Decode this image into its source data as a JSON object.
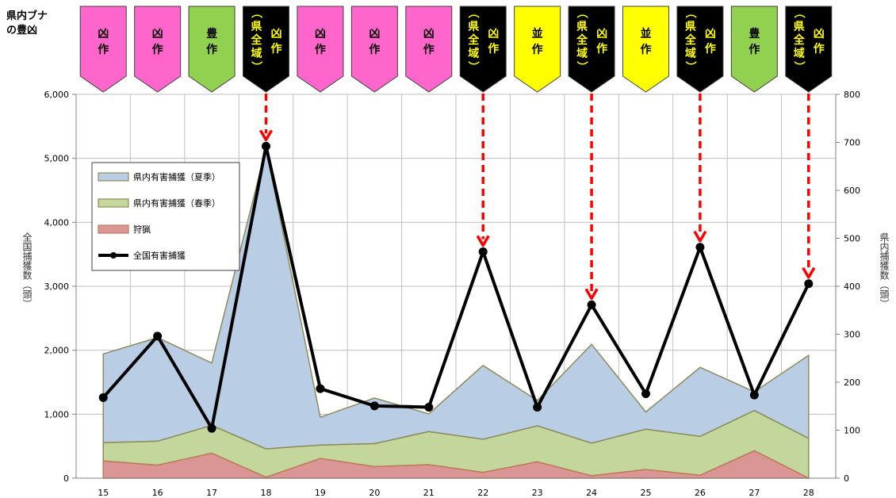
{
  "corner_title": [
    "県内ブナ",
    "の豊凶"
  ],
  "y_left_label": "全国捕獲数（頭）",
  "y_right_label": "県内捕獲数（頭）",
  "flags": [
    {
      "year": 15,
      "lines": [
        "凶",
        "作"
      ],
      "style": "pink"
    },
    {
      "year": 16,
      "lines": [
        "凶",
        "作"
      ],
      "style": "pink"
    },
    {
      "year": 17,
      "lines": [
        "豊",
        "作"
      ],
      "style": "green"
    },
    {
      "year": 18,
      "lines": [
        "（県全域）",
        "凶作"
      ],
      "style": "black"
    },
    {
      "year": 19,
      "lines": [
        "凶",
        "作"
      ],
      "style": "pink"
    },
    {
      "year": 20,
      "lines": [
        "凶",
        "作"
      ],
      "style": "pink"
    },
    {
      "year": 21,
      "lines": [
        "凶",
        "作"
      ],
      "style": "pink"
    },
    {
      "year": 22,
      "lines": [
        "（県全域）",
        "凶作"
      ],
      "style": "black"
    },
    {
      "year": 23,
      "lines": [
        "並",
        "作"
      ],
      "style": "yellow"
    },
    {
      "year": 24,
      "lines": [
        "（県全域）",
        "凶作"
      ],
      "style": "black"
    },
    {
      "year": 25,
      "lines": [
        "並",
        "作"
      ],
      "style": "yellow"
    },
    {
      "year": 26,
      "lines": [
        "（県全域）",
        "凶作"
      ],
      "style": "black"
    },
    {
      "year": 27,
      "lines": [
        "豊",
        "作"
      ],
      "style": "green"
    },
    {
      "year": 28,
      "lines": [
        "（県全域）",
        "凶作"
      ],
      "style": "black"
    }
  ],
  "flag_colors": {
    "pink": {
      "fill": "#ff66cc",
      "text": "#000000"
    },
    "green": {
      "fill": "#92d050",
      "text": "#000000"
    },
    "yellow": {
      "fill": "#ffff00",
      "text": "#000000"
    },
    "black": {
      "fill": "#000000",
      "text": "#ffff00"
    }
  },
  "arrow_years": [
    18,
    22,
    24,
    26,
    28
  ],
  "arrow_color": "#ff0000",
  "chart_data": {
    "type": "area",
    "x": [
      15,
      16,
      17,
      18,
      19,
      20,
      21,
      22,
      23,
      24,
      25,
      26,
      27,
      28
    ],
    "y_left": {
      "min": 0,
      "max": 6000,
      "step": 1000,
      "ticks": [
        "0",
        "1,000",
        "2,000",
        "3,000",
        "4,000",
        "5,000",
        "6,000"
      ]
    },
    "y_right": {
      "min": 0,
      "max": 800,
      "step": 100,
      "ticks": [
        "0",
        "100",
        "200",
        "300",
        "400",
        "500",
        "600",
        "700",
        "800"
      ]
    },
    "grid": true,
    "legend_position": "top-left",
    "series": [
      {
        "name": "県内有害捕獲（夏季）",
        "type": "stacked-area",
        "axis": "right",
        "color": "#b9cde5",
        "edge": "#8c8c5a",
        "values": [
          185,
          216,
          130,
          626,
          58,
          95,
          37,
          154,
          53,
          206,
          36,
          144,
          39,
          173
        ]
      },
      {
        "name": "県内有害捕獲（春季）",
        "type": "stacked-area",
        "axis": "right",
        "color": "#c3d69b",
        "edge": "#8c8c5a",
        "values": [
          38,
          50,
          58,
          59,
          28,
          48,
          69,
          69,
          75,
          68,
          84,
          81,
          84,
          83
        ]
      },
      {
        "name": "狩猟",
        "type": "stacked-area",
        "axis": "right",
        "color": "#d99694",
        "edge": "#c0785a",
        "values": [
          36,
          27,
          52,
          2,
          41,
          24,
          28,
          12,
          34,
          5,
          18,
          6,
          57,
          0
        ]
      },
      {
        "name": "全国有害捕獲",
        "type": "line",
        "axis": "left",
        "color": "#000000",
        "values": [
          1260,
          2220,
          780,
          5190,
          1400,
          1130,
          1110,
          3540,
          1110,
          2710,
          1320,
          3610,
          1300,
          3040
        ]
      }
    ]
  }
}
